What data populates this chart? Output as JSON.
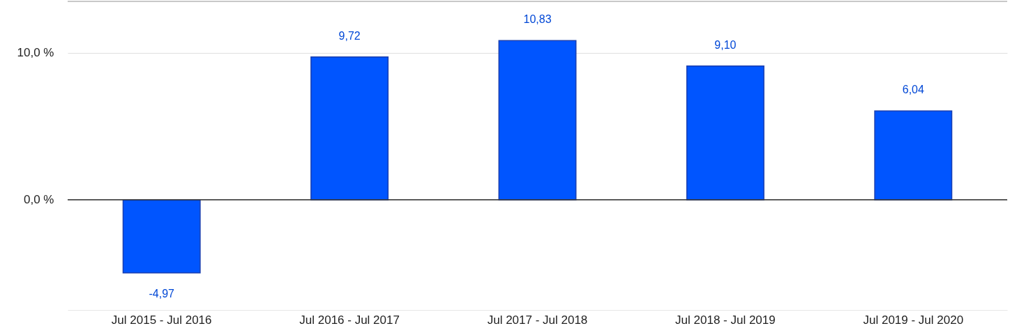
{
  "chart_data": {
    "type": "bar",
    "categories": [
      "Jul 2015 - Jul 2016",
      "Jul 2016 - Jul 2017",
      "Jul 2017 - Jul 2018",
      "Jul 2018 - Jul 2019",
      "Jul 2019 - Jul 2020"
    ],
    "values": [
      -4.97,
      9.72,
      10.83,
      9.1,
      6.04
    ],
    "value_labels": [
      "-4,97",
      "9,72",
      "10,83",
      "9,10",
      "6,04"
    ],
    "color": "#0055ff",
    "ylim": [
      -7.5,
      13.5
    ],
    "yticks": [
      {
        "value": 0,
        "label": "0,0 %"
      },
      {
        "value": 10,
        "label": "10,0 %"
      }
    ],
    "grid": "y",
    "ref_lines": [
      {
        "axis": "y",
        "value": 0,
        "label": null,
        "color": "#333333"
      }
    ]
  }
}
